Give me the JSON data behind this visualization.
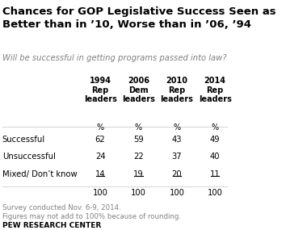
{
  "title": "Chances for GOP Legislative Success Seen as\nBetter than in ’10, Worse than in ’06, ’94",
  "subtitle": "Will be successful in getting programs passed into law?",
  "col_headers": [
    "1994\nRep\nleaders",
    "2006\nDem\nleaders",
    "2010\nRep\nleaders",
    "2014\nRep\nleaders"
  ],
  "pct_label": "%",
  "row_labels": [
    "Successful",
    "Unsuccessful",
    "Mixed/ Don’t know",
    ""
  ],
  "data": [
    [
      62,
      59,
      43,
      49
    ],
    [
      24,
      22,
      37,
      40
    ],
    [
      14,
      19,
      20,
      11
    ],
    [
      100,
      100,
      100,
      100
    ]
  ],
  "underlined_row": 2,
  "footer1": "Survey conducted Nov. 6-9, 2014.",
  "footer2": "Figures may not add to 100% because of rounding.",
  "branding": "PEW RESEARCH CENTER",
  "bg_color": "#ffffff",
  "title_color": "#000000",
  "subtitle_color": "#808080",
  "data_color": "#000000",
  "footer_color": "#808080",
  "branding_color": "#000000",
  "line_color": "#cccccc"
}
